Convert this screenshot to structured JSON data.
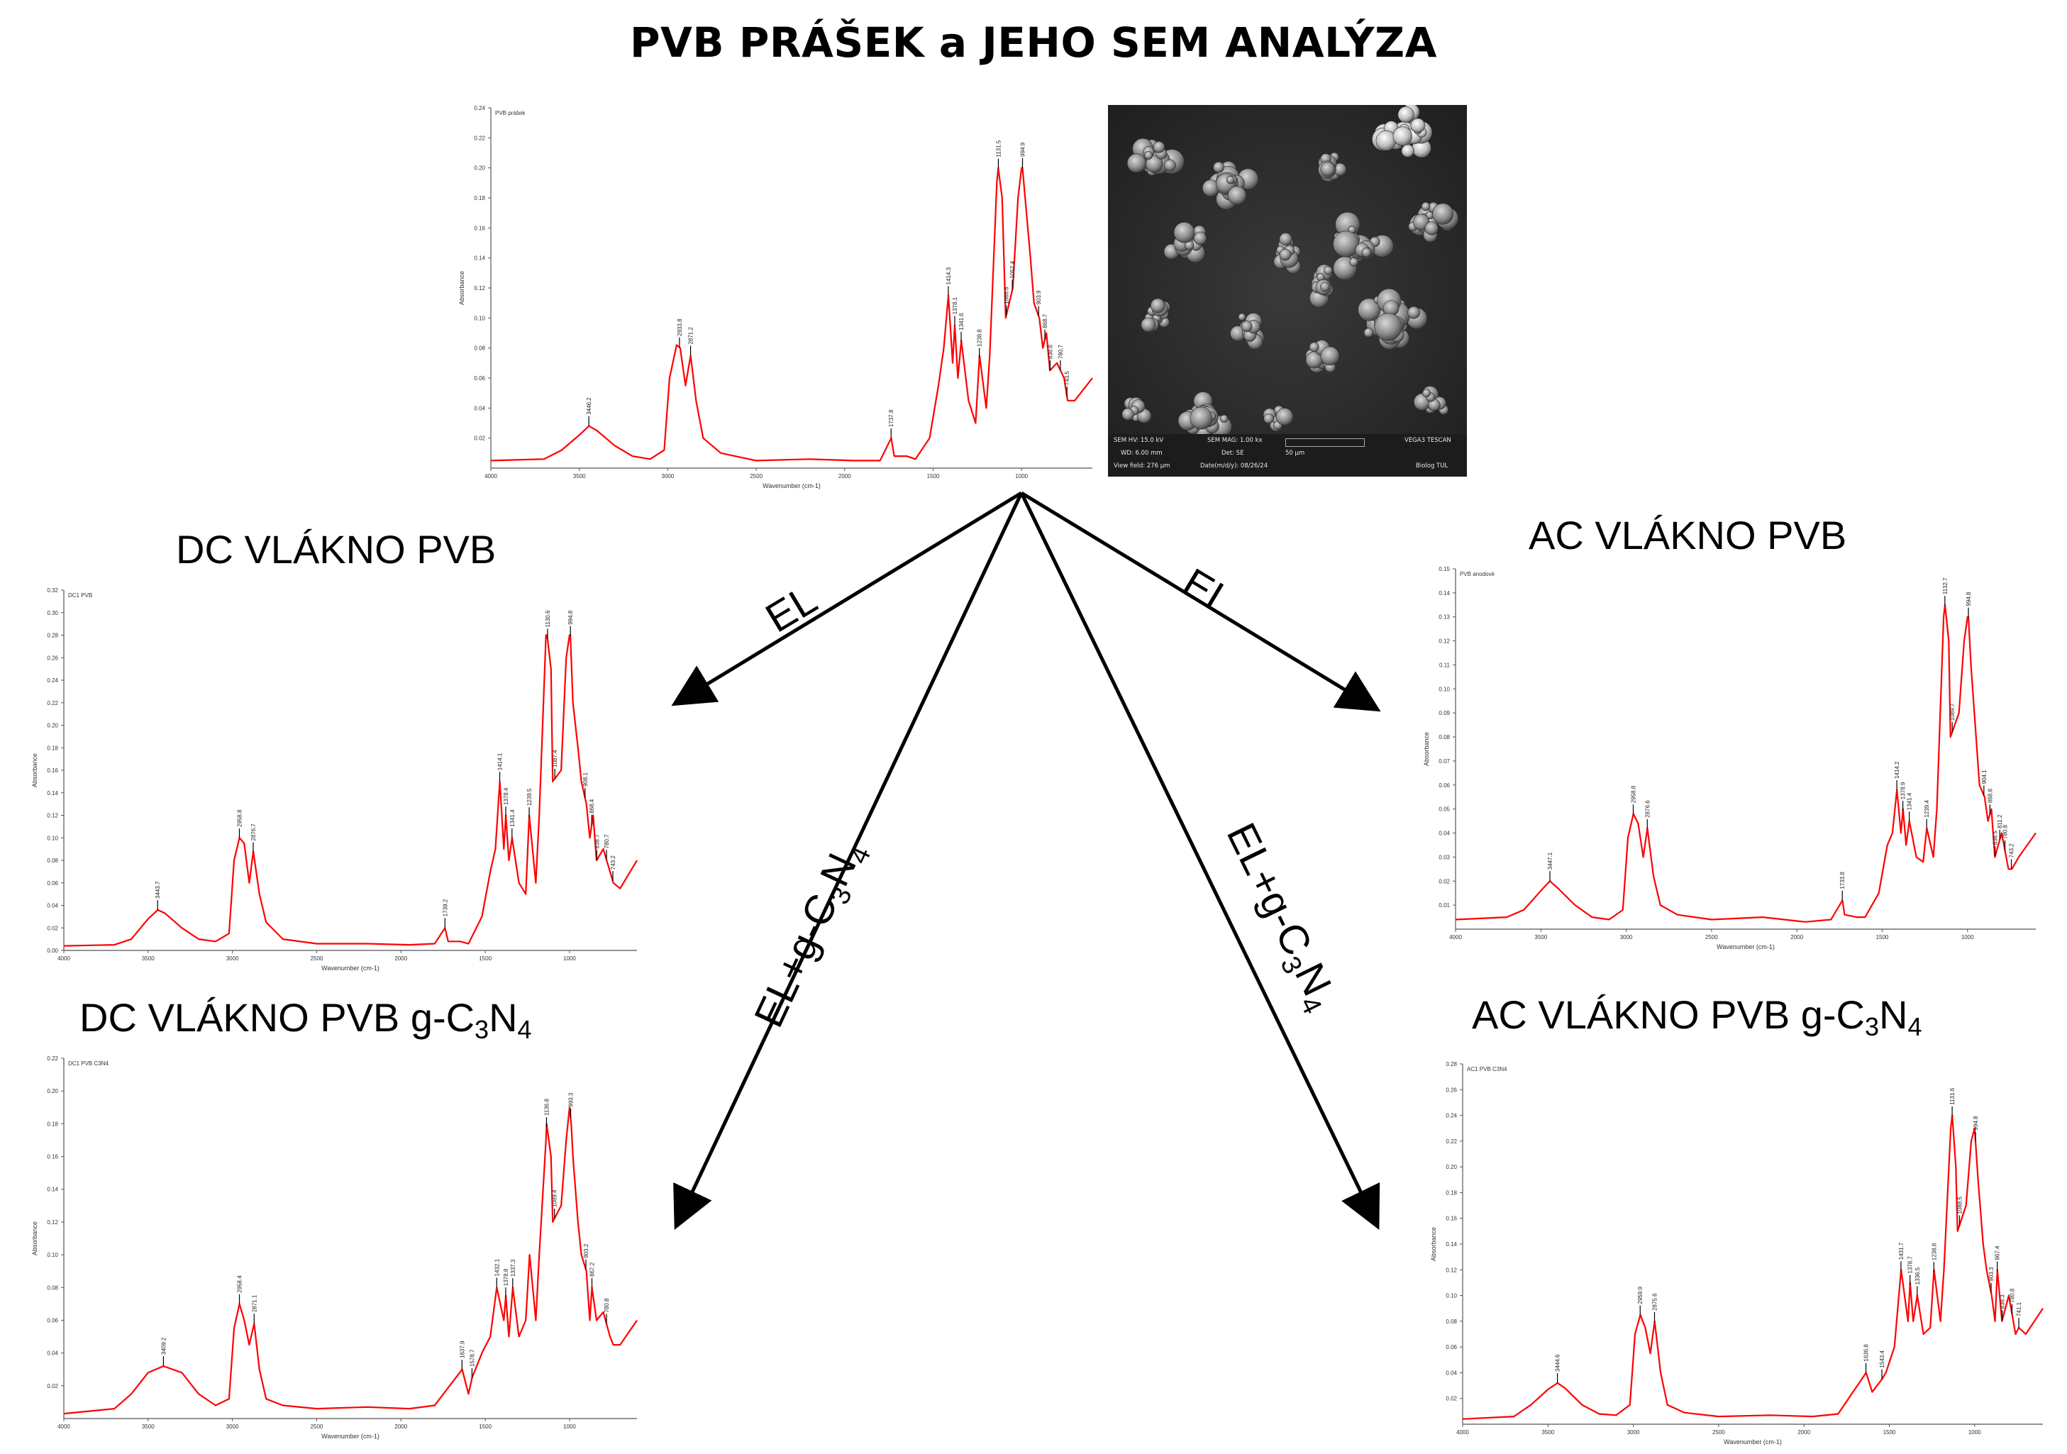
{
  "title": "PVB PRÁŠEK a JEHO SEM ANALÝZA",
  "arrows": {
    "el_left": "EL",
    "el_right": "EL",
    "elg_left": {
      "prefix": "EL+g-C",
      "sub1": "3",
      "mid": "N",
      "sub2": "4"
    },
    "elg_right": {
      "prefix": "EL+g-C",
      "sub1": "3",
      "mid": "N",
      "sub2": "4"
    }
  },
  "sem": {
    "image_name": "sem-micrograph",
    "hv": "SEM HV: 15.0 kV",
    "wd": "WD: 6.00 mm",
    "view_field": "View field: 276 µm",
    "mag": "SEM MAG: 1.00 kx",
    "det": "Det: SE",
    "date": "Date(m/d/y): 08/26/24",
    "scale": "50 µm",
    "brand": "VEGA3 TESCAN",
    "lab": "Biolog TUL"
  },
  "chart_data": [
    {
      "id": "pvb-powder",
      "type": "line",
      "title": "",
      "trace_label": "PVB prášek",
      "xlabel": "Wavenumber (cm-1)",
      "ylabel": "Absorbance",
      "xlim": [
        4000,
        600
      ],
      "ylim": [
        0.0,
        0.24
      ],
      "x_ticks": [
        "4000",
        "3500",
        "3000",
        "2500",
        "2000",
        "1500",
        "1000"
      ],
      "y_ticks": [
        "0.02",
        "0.04",
        "0.06",
        "0.08",
        "0.10",
        "0.12",
        "0.14",
        "0.16",
        "0.18",
        "0.20",
        "0.22",
        "0.24"
      ],
      "color": "#ff0000",
      "series": [
        {
          "x": [
            4000,
            3700,
            3600,
            3500,
            3446,
            3400,
            3300,
            3200,
            3100,
            3020,
            2990,
            2950,
            2930,
            2900,
            2871,
            2840,
            2800,
            2700,
            2500,
            2200,
            1950,
            1800,
            1737,
            1720,
            1650,
            1600,
            1520,
            1470,
            1440,
            1414,
            1390,
            1378,
            1360,
            1341,
            1300,
            1260,
            1238,
            1200,
            1180,
            1140,
            1132,
            1110,
            1090,
            1050,
            1020,
            1000,
            995,
            980,
            950,
            930,
            900,
            880,
            860,
            840,
            800,
            760,
            740,
            700,
            600
          ],
          "y": [
            0.005,
            0.006,
            0.012,
            0.022,
            0.028,
            0.025,
            0.015,
            0.008,
            0.006,
            0.012,
            0.06,
            0.082,
            0.08,
            0.055,
            0.075,
            0.045,
            0.02,
            0.01,
            0.005,
            0.006,
            0.005,
            0.005,
            0.02,
            0.008,
            0.008,
            0.006,
            0.02,
            0.055,
            0.08,
            0.115,
            0.07,
            0.095,
            0.06,
            0.085,
            0.045,
            0.03,
            0.075,
            0.04,
            0.075,
            0.19,
            0.2,
            0.18,
            0.1,
            0.12,
            0.18,
            0.2,
            0.2,
            0.18,
            0.14,
            0.11,
            0.1,
            0.08,
            0.09,
            0.065,
            0.07,
            0.06,
            0.045,
            0.045,
            0.06
          ]
        }
      ],
      "annotations": [
        "3446.2",
        "2933.8",
        "2871.2",
        "1737.8",
        "1414.3",
        "1378.1",
        "1341.6",
        "1238.8",
        "1131.5",
        "1086.6",
        "1052.4",
        "994.9",
        "903.9",
        "868.7",
        "838.8",
        "780.7",
        "743.5"
      ]
    },
    {
      "id": "dc-fiber-pvb",
      "type": "line",
      "title": "DC VLÁKNO PVB",
      "trace_label": "DC1 PVB",
      "xlabel": "Wavenumber (cm-1)",
      "ylabel": "Absorbance",
      "xlim": [
        4000,
        600
      ],
      "ylim": [
        0.0,
        0.32
      ],
      "x_ticks": [
        "4000",
        "3500",
        "3000",
        "2500",
        "2000",
        "1500",
        "1000"
      ],
      "y_ticks": [
        "0.00",
        "0.02",
        "0.04",
        "0.06",
        "0.08",
        "0.10",
        "0.12",
        "0.14",
        "0.16",
        "0.18",
        "0.20",
        "0.22",
        "0.24",
        "0.26",
        "0.28",
        "0.30",
        "0.32"
      ],
      "color": "#ff0000",
      "series": [
        {
          "x": [
            4000,
            3700,
            3600,
            3500,
            3443,
            3400,
            3300,
            3200,
            3100,
            3020,
            2990,
            2958,
            2930,
            2900,
            2876,
            2840,
            2800,
            2700,
            2500,
            2200,
            1950,
            1800,
            1739,
            1720,
            1650,
            1600,
            1520,
            1470,
            1440,
            1414,
            1390,
            1378,
            1360,
            1341,
            1300,
            1260,
            1239,
            1200,
            1180,
            1140,
            1133,
            1110,
            1100,
            1050,
            1020,
            1000,
            995,
            980,
            950,
            930,
            900,
            880,
            860,
            840,
            800,
            760,
            740,
            700,
            600
          ],
          "y": [
            0.004,
            0.005,
            0.01,
            0.028,
            0.036,
            0.033,
            0.02,
            0.01,
            0.008,
            0.015,
            0.08,
            0.1,
            0.095,
            0.06,
            0.088,
            0.05,
            0.025,
            0.01,
            0.006,
            0.006,
            0.005,
            0.006,
            0.02,
            0.008,
            0.008,
            0.006,
            0.03,
            0.07,
            0.09,
            0.15,
            0.09,
            0.12,
            0.08,
            0.1,
            0.06,
            0.05,
            0.12,
            0.06,
            0.12,
            0.28,
            0.28,
            0.25,
            0.15,
            0.16,
            0.26,
            0.28,
            0.28,
            0.22,
            0.18,
            0.15,
            0.13,
            0.1,
            0.12,
            0.08,
            0.09,
            0.07,
            0.06,
            0.055,
            0.08
          ]
        }
      ],
      "annotations": [
        "3443.7",
        "2958.8",
        "2876.7",
        "1739.2",
        "1414.1",
        "1378.4",
        "1341.4",
        "1239.5",
        "1130.6",
        "1087.4",
        "994.8",
        "908.1",
        "868.4",
        "838.7",
        "780.7",
        "743.2"
      ]
    },
    {
      "id": "dc-fiber-pvb-gc3n4",
      "type": "line",
      "title": "DC VLÁKNO PVB g-C3N4",
      "trace_label": "DC1 PVB C3N4",
      "xlabel": "Wavenumber (cm-1)",
      "ylabel": "Absorbance",
      "xlim": [
        4000,
        600
      ],
      "ylim": [
        0.0,
        0.22
      ],
      "x_ticks": [
        "4000",
        "3500",
        "3000",
        "2500",
        "2000",
        "1500",
        "1000"
      ],
      "y_ticks": [
        "0.02",
        "0.04",
        "0.06",
        "0.08",
        "0.10",
        "0.12",
        "0.14",
        "0.16",
        "0.18",
        "0.20",
        "0.22"
      ],
      "color": "#ff0000",
      "series": [
        {
          "x": [
            4000,
            3700,
            3600,
            3500,
            3409,
            3300,
            3200,
            3100,
            3020,
            2990,
            2958,
            2930,
            2900,
            2871,
            2840,
            2800,
            2700,
            2500,
            2200,
            1950,
            1800,
            1637,
            1600,
            1578,
            1520,
            1470,
            1432,
            1390,
            1378,
            1360,
            1337,
            1300,
            1260,
            1237,
            1200,
            1180,
            1140,
            1136,
            1110,
            1100,
            1050,
            1020,
            1000,
            990,
            980,
            950,
            930,
            900,
            880,
            867,
            840,
            800,
            760,
            740,
            700,
            600
          ],
          "y": [
            0.003,
            0.006,
            0.015,
            0.028,
            0.032,
            0.028,
            0.015,
            0.008,
            0.012,
            0.055,
            0.07,
            0.06,
            0.045,
            0.058,
            0.03,
            0.012,
            0.008,
            0.006,
            0.007,
            0.006,
            0.008,
            0.03,
            0.015,
            0.025,
            0.04,
            0.05,
            0.08,
            0.06,
            0.075,
            0.05,
            0.08,
            0.05,
            0.06,
            0.1,
            0.06,
            0.1,
            0.17,
            0.18,
            0.16,
            0.12,
            0.13,
            0.17,
            0.19,
            0.18,
            0.16,
            0.12,
            0.1,
            0.09,
            0.06,
            0.08,
            0.06,
            0.065,
            0.05,
            0.045,
            0.045,
            0.06
          ]
        }
      ],
      "annotations": [
        "3409.2",
        "2958.4",
        "2871.1",
        "1637.9",
        "1578.7",
        "1432.1",
        "1378.8",
        "1337.3",
        "1136.8",
        "1089.4",
        "993.3",
        "903.2",
        "867.2",
        "780.8"
      ]
    },
    {
      "id": "ac-fiber-pvb",
      "type": "line",
      "title": "AC VLÁKNO PVB",
      "trace_label": "PVB anodové",
      "xlabel": "Wavenumber (cm-1)",
      "ylabel": "Absorbance",
      "xlim": [
        4000,
        600
      ],
      "ylim": [
        0.0,
        0.15
      ],
      "x_ticks": [
        "4000",
        "3500",
        "3000",
        "2500",
        "2000",
        "1500",
        "1000"
      ],
      "y_ticks": [
        "0.01",
        "0.02",
        "0.03",
        "0.04",
        "0.05",
        "0.06",
        "0.07",
        "0.08",
        "0.09",
        "0.10",
        "0.11",
        "0.12",
        "0.13",
        "0.14",
        "0.15"
      ],
      "color": "#ff0000",
      "series": [
        {
          "x": [
            4000,
            3700,
            3600,
            3500,
            3447,
            3400,
            3300,
            3200,
            3100,
            3020,
            2990,
            2958,
            2930,
            2900,
            2876,
            2840,
            2800,
            2700,
            2500,
            2200,
            1950,
            1800,
            1733,
            1720,
            1650,
            1600,
            1520,
            1470,
            1440,
            1414,
            1390,
            1378,
            1360,
            1341,
            1300,
            1260,
            1239,
            1200,
            1180,
            1140,
            1132,
            1110,
            1100,
            1050,
            1020,
            1000,
            995,
            980,
            950,
            930,
            900,
            880,
            860,
            840,
            800,
            760,
            740,
            700,
            600
          ],
          "y": [
            0.004,
            0.005,
            0.008,
            0.016,
            0.02,
            0.017,
            0.01,
            0.005,
            0.004,
            0.008,
            0.038,
            0.048,
            0.044,
            0.03,
            0.042,
            0.022,
            0.01,
            0.006,
            0.004,
            0.005,
            0.003,
            0.004,
            0.012,
            0.006,
            0.005,
            0.005,
            0.015,
            0.035,
            0.04,
            0.058,
            0.04,
            0.05,
            0.035,
            0.045,
            0.03,
            0.028,
            0.042,
            0.03,
            0.05,
            0.13,
            0.135,
            0.12,
            0.08,
            0.09,
            0.12,
            0.13,
            0.13,
            0.11,
            0.08,
            0.06,
            0.055,
            0.045,
            0.05,
            0.03,
            0.04,
            0.025,
            0.025,
            0.03,
            0.04
          ]
        }
      ],
      "annotations": [
        "3447.1",
        "2958.8",
        "2876.6",
        "1733.8",
        "1414.2",
        "1378.9",
        "1341.4",
        "1239.4",
        "1132.7",
        "1089.7",
        "994.8",
        "904.1",
        "868.8",
        "838.5",
        "811.2",
        "780.8",
        "743.2"
      ]
    },
    {
      "id": "ac-fiber-pvb-gc3n4",
      "type": "line",
      "title": "AC VLÁKNO PVB g-C3N4",
      "trace_label": "AC1 PVB C3N4",
      "xlabel": "Wavenumber (cm-1)",
      "ylabel": "Absorbance",
      "xlim": [
        4000,
        600
      ],
      "ylim": [
        0.0,
        0.28
      ],
      "x_ticks": [
        "4000",
        "3500",
        "3000",
        "2500",
        "2000",
        "1500",
        "1000"
      ],
      "y_ticks": [
        "0.02",
        "0.04",
        "0.06",
        "0.08",
        "0.10",
        "0.12",
        "0.14",
        "0.16",
        "0.18",
        "0.20",
        "0.22",
        "0.24",
        "0.26",
        "0.28"
      ],
      "color": "#ff0000",
      "series": [
        {
          "x": [
            4000,
            3700,
            3600,
            3500,
            3444,
            3400,
            3300,
            3200,
            3100,
            3020,
            2990,
            2959,
            2930,
            2900,
            2875,
            2840,
            2800,
            2700,
            2500,
            2200,
            1950,
            1800,
            1636,
            1600,
            1543,
            1520,
            1470,
            1431,
            1390,
            1378,
            1360,
            1336,
            1300,
            1260,
            1238,
            1200,
            1180,
            1140,
            1131,
            1110,
            1100,
            1050,
            1020,
            1000,
            995,
            980,
            950,
            930,
            900,
            880,
            867,
            840,
            800,
            760,
            741,
            700,
            600
          ],
          "y": [
            0.004,
            0.006,
            0.015,
            0.027,
            0.032,
            0.028,
            0.015,
            0.008,
            0.007,
            0.015,
            0.07,
            0.085,
            0.075,
            0.055,
            0.08,
            0.04,
            0.015,
            0.009,
            0.006,
            0.007,
            0.006,
            0.008,
            0.04,
            0.025,
            0.035,
            0.04,
            0.06,
            0.12,
            0.08,
            0.11,
            0.08,
            0.1,
            0.07,
            0.075,
            0.12,
            0.08,
            0.12,
            0.23,
            0.24,
            0.2,
            0.15,
            0.17,
            0.22,
            0.23,
            0.22,
            0.19,
            0.14,
            0.12,
            0.1,
            0.08,
            0.12,
            0.08,
            0.1,
            0.07,
            0.075,
            0.07,
            0.09
          ]
        }
      ],
      "annotations": [
        "3444.6",
        "2959.9",
        "2875.6",
        "1636.8",
        "1543.4",
        "1431.7",
        "1378.7",
        "1336.5",
        "1238.8",
        "1131.6",
        "1088.5",
        "994.8",
        "903.3",
        "867.4",
        "838.3",
        "780.8",
        "741.1"
      ]
    }
  ]
}
